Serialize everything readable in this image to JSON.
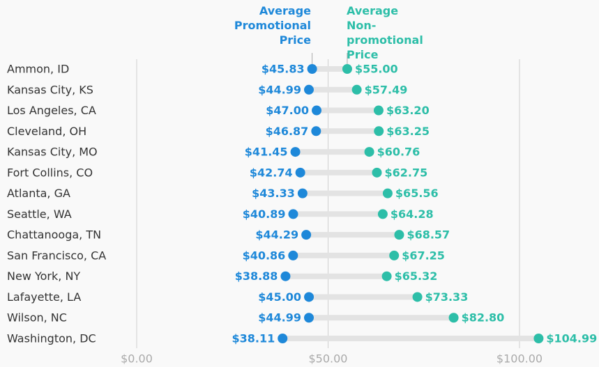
{
  "chart_data": {
    "type": "dumbbell",
    "categories": [
      "Ammon, ID",
      "Kansas City, KS",
      "Los Angeles, CA",
      "Cleveland, OH",
      "Kansas City, MO",
      "Fort Collins, CO",
      "Atlanta, GA",
      "Seattle, WA",
      "Chattanooga, TN",
      "San Francisco, CA",
      "New York, NY",
      "Lafayette, LA",
      "Wilson, NC",
      "Washington, DC"
    ],
    "series": [
      {
        "name": "Average Promotional Price",
        "color": "#1e88d9",
        "values": [
          45.83,
          44.99,
          47.0,
          46.87,
          41.45,
          42.74,
          43.33,
          40.89,
          44.29,
          40.86,
          38.88,
          45.0,
          44.99,
          38.11
        ],
        "value_labels": [
          "$45.83",
          "$44.99",
          "$47.00",
          "$46.87",
          "$41.45",
          "$42.74",
          "$43.33",
          "$40.89",
          "$44.29",
          "$40.86",
          "$38.88",
          "$45.00",
          "$44.99",
          "$38.11"
        ]
      },
      {
        "name": "Average Non-promotional Price",
        "color": "#2dbea8",
        "values": [
          55.0,
          57.49,
          63.2,
          63.25,
          60.76,
          62.75,
          65.56,
          64.28,
          68.57,
          67.25,
          65.32,
          73.33,
          82.8,
          104.99
        ],
        "value_labels": [
          "$55.00",
          "$57.49",
          "$63.20",
          "$63.25",
          "$60.76",
          "$62.75",
          "$65.56",
          "$64.28",
          "$68.57",
          "$67.25",
          "$65.32",
          "$73.33",
          "$82.80",
          "$104.99"
        ]
      }
    ],
    "xlim": [
      0,
      120
    ],
    "xticks": [
      {
        "value": 0,
        "label": "$0.00"
      },
      {
        "value": 50,
        "label": "$50.00"
      },
      {
        "value": 100,
        "label": "$100.00"
      }
    ],
    "grid": true
  }
}
